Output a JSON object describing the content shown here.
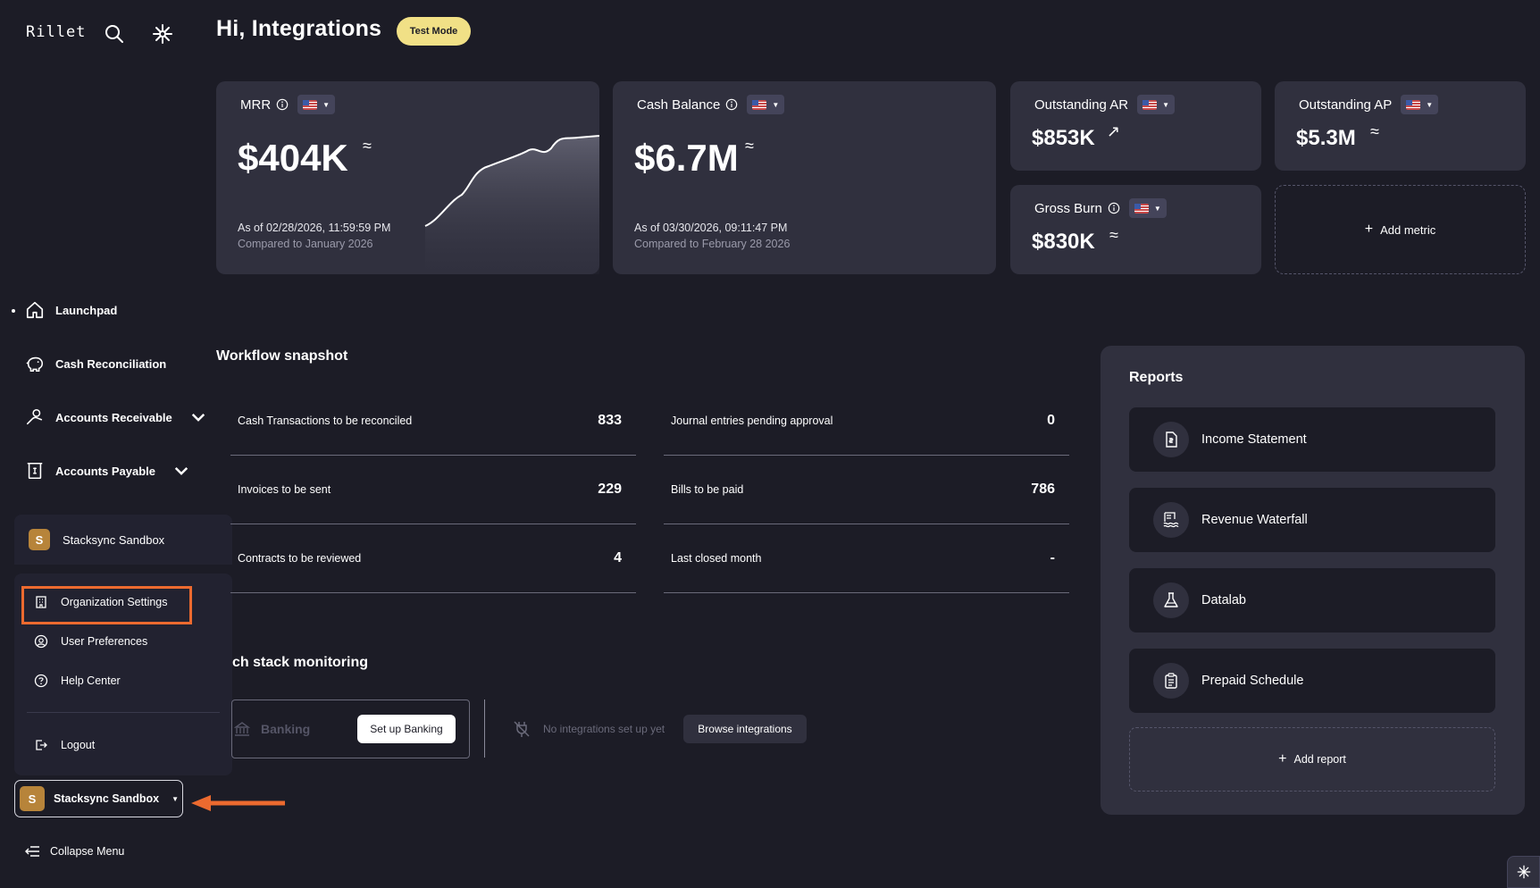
{
  "app": {
    "logo": "Rillet",
    "greeting": "Hi, Integrations",
    "test_mode": "Test Mode"
  },
  "metrics": {
    "mrr": {
      "label": "MRR",
      "value": "$404K",
      "approx": "≈",
      "as_of": "As of 02/28/2026, 11:59:59 PM",
      "compared": "Compared to January 2026"
    },
    "cash": {
      "label": "Cash Balance",
      "value": "$6.7M",
      "approx": "≈",
      "as_of": "As of 03/30/2026, 09:11:47 PM",
      "compared": "Compared to February 28 2026"
    },
    "ar": {
      "label": "Outstanding AR",
      "value": "$853K",
      "trend": "↗"
    },
    "ap": {
      "label": "Outstanding AP",
      "value": "$5.3M",
      "approx": "≈"
    },
    "burn": {
      "label": "Gross Burn",
      "value": "$830K",
      "approx": "≈"
    },
    "add_metric": "Add metric"
  },
  "sidebar": {
    "items": [
      {
        "label": "Launchpad"
      },
      {
        "label": "Cash Reconciliation"
      },
      {
        "label": "Accounts Receivable"
      },
      {
        "label": "Accounts Payable"
      }
    ],
    "org_name": "Stacksync Sandbox",
    "org_initial": "S",
    "menu": [
      {
        "label": "Organization Settings"
      },
      {
        "label": "User Preferences"
      },
      {
        "label": "Help Center"
      },
      {
        "label": "Logout"
      }
    ],
    "collapse": "Collapse Menu"
  },
  "workflow": {
    "title": "Workflow snapshot",
    "left": [
      {
        "label": "Cash Transactions to be reconciled",
        "value": "833"
      },
      {
        "label": "Invoices to be sent",
        "value": "229"
      },
      {
        "label": "Contracts to be reviewed",
        "value": "4"
      }
    ],
    "right": [
      {
        "label": "Journal entries pending approval",
        "value": "0"
      },
      {
        "label": "Bills to be paid",
        "value": "786"
      },
      {
        "label": "Last closed month",
        "value": "-"
      }
    ]
  },
  "tech": {
    "title": "ch stack monitoring",
    "banking": "Banking",
    "setup": "Set up Banking",
    "none": "No integrations set up yet",
    "browse": "Browse integrations"
  },
  "reports": {
    "title": "Reports",
    "items": [
      {
        "label": "Income Statement"
      },
      {
        "label": "Revenue Waterfall"
      },
      {
        "label": "Datalab"
      },
      {
        "label": "Prepaid Schedule"
      }
    ],
    "add": "Add report"
  },
  "colors": {
    "background": "#1c1c26",
    "card": "#30303e",
    "accent": "#ec6a2f",
    "badge": "#f1e086",
    "avatar": "#b7843a"
  }
}
